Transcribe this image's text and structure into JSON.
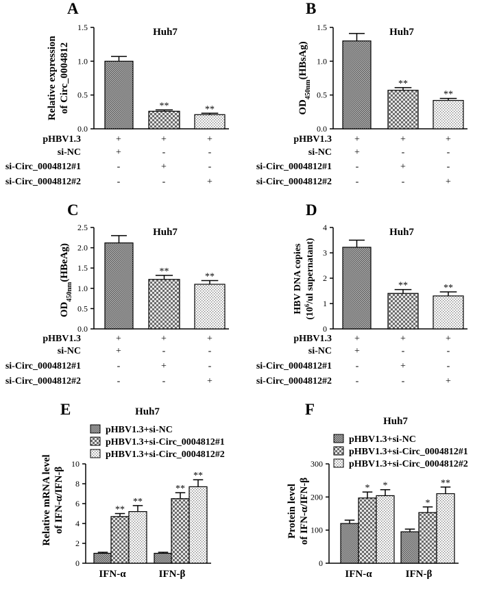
{
  "chart_data": [
    {
      "panel": "A",
      "type": "bar",
      "title": "Huh7",
      "ylabel": [
        "Relative expression",
        "of Circ_0004812"
      ],
      "ylim": [
        0,
        1.5
      ],
      "yticks": [
        "0.0",
        "0.5",
        "1.0",
        "1.5"
      ],
      "tickvals": [
        0,
        0.5,
        1.0,
        1.5
      ],
      "values": [
        1.0,
        0.26,
        0.21
      ],
      "errors": [
        0.07,
        0.02,
        0.02
      ],
      "sig": [
        "",
        "**",
        "**"
      ],
      "rows": [
        {
          "label": "pHBV1.3",
          "marks": [
            "+",
            "+",
            "+"
          ]
        },
        {
          "label": "si-NC",
          "marks": [
            "+",
            "-",
            "-"
          ]
        },
        {
          "label": "si-Circ_0004812#1",
          "marks": [
            "-",
            "+",
            "-"
          ]
        },
        {
          "label": "si-Circ_0004812#2",
          "marks": [
            "-",
            "-",
            "+"
          ]
        }
      ]
    },
    {
      "panel": "B",
      "type": "bar",
      "title": "Huh7",
      "ylabel_parts": {
        "pre": "OD",
        "sub": "450nm",
        "post": "(HBsAg)"
      },
      "ylim": [
        0,
        1.5
      ],
      "yticks": [
        "0.0",
        "0.5",
        "1.0",
        "1.5"
      ],
      "tickvals": [
        0,
        0.5,
        1.0,
        1.5
      ],
      "values": [
        1.3,
        0.57,
        0.42
      ],
      "errors": [
        0.11,
        0.04,
        0.03
      ],
      "sig": [
        "",
        "**",
        "**"
      ],
      "rows": [
        {
          "label": "pHBV1.3",
          "marks": [
            "+",
            "+",
            "+"
          ]
        },
        {
          "label": "si-NC",
          "marks": [
            "+",
            "-",
            "-"
          ]
        },
        {
          "label": "si-Circ_0004812#1",
          "marks": [
            "-",
            "+",
            "-"
          ]
        },
        {
          "label": "si-Circ_0004812#2",
          "marks": [
            "-",
            "-",
            "+"
          ]
        }
      ]
    },
    {
      "panel": "C",
      "type": "bar",
      "title": "Huh7",
      "ylabel_parts": {
        "pre": "OD",
        "sub": "450nm",
        "post": "(HBeAg)"
      },
      "ylim": [
        0,
        2.5
      ],
      "yticks": [
        "0.0",
        "0.5",
        "1.0",
        "1.5",
        "2.0",
        "2.5"
      ],
      "tickvals": [
        0,
        0.5,
        1.0,
        1.5,
        2.0,
        2.5
      ],
      "values": [
        2.12,
        1.22,
        1.1
      ],
      "errors": [
        0.18,
        0.1,
        0.09
      ],
      "sig": [
        "",
        "**",
        "**"
      ],
      "rows": [
        {
          "label": "pHBV1.3",
          "marks": [
            "+",
            "+",
            "+"
          ]
        },
        {
          "label": "si-NC",
          "marks": [
            "+",
            "-",
            "-"
          ]
        },
        {
          "label": "si-Circ_0004812#1",
          "marks": [
            "-",
            "+",
            "-"
          ]
        },
        {
          "label": "si-Circ_0004812#2",
          "marks": [
            "-",
            "-",
            "+"
          ]
        }
      ]
    },
    {
      "panel": "D",
      "type": "bar",
      "title": "Huh7",
      "ylabel_parts": {
        "line1": "HBV DNA copies",
        "pre": "(10",
        "sup": "6",
        "post": "/ul supernatant)"
      },
      "ylim": [
        0,
        4
      ],
      "yticks": [
        "0",
        "1",
        "2",
        "3",
        "4"
      ],
      "tickvals": [
        0,
        1,
        2,
        3,
        4
      ],
      "values": [
        3.22,
        1.4,
        1.3
      ],
      "errors": [
        0.28,
        0.15,
        0.16
      ],
      "sig": [
        "",
        "**",
        "**"
      ],
      "rows": [
        {
          "label": "pHBV1.3",
          "marks": [
            "+",
            "+",
            "+"
          ]
        },
        {
          "label": "si-NC",
          "marks": [
            "+",
            "-",
            "-"
          ]
        },
        {
          "label": "si-Circ_0004812#1",
          "marks": [
            "-",
            "+",
            "-"
          ]
        },
        {
          "label": "si-Circ_0004812#2",
          "marks": [
            "-",
            "-",
            "+"
          ]
        }
      ]
    },
    {
      "panel": "E",
      "type": "bar",
      "title": "Huh7",
      "ylabel": [
        "Relative mRNA level",
        "of IFN-α/IFN-β"
      ],
      "ylim": [
        0,
        10
      ],
      "yticks": [
        "0",
        "2",
        "4",
        "6",
        "8",
        "10"
      ],
      "tickvals": [
        0,
        2,
        4,
        6,
        8,
        10
      ],
      "categories": [
        "IFN-α",
        "IFN-β"
      ],
      "series": [
        {
          "name": "pHBV1.3+si-NC",
          "values": [
            1.0,
            1.0
          ],
          "errors": [
            0.1,
            0.1
          ],
          "sig": [
            "",
            ""
          ]
        },
        {
          "name": "pHBV1.3+si-Circ_0004812#1",
          "values": [
            4.7,
            6.5
          ],
          "errors": [
            0.3,
            0.6
          ],
          "sig": [
            "**",
            "**"
          ]
        },
        {
          "name": "pHBV1.3+si-Circ_0004812#2",
          "values": [
            5.2,
            7.7
          ],
          "errors": [
            0.6,
            0.7
          ],
          "sig": [
            "**",
            "**"
          ]
        }
      ]
    },
    {
      "panel": "F",
      "type": "bar",
      "title": "Huh7",
      "ylabel": [
        "Protein level",
        "of IFN-α/IFN-β"
      ],
      "ylim": [
        0,
        300
      ],
      "yticks": [
        "0",
        "100",
        "200",
        "300"
      ],
      "tickvals": [
        0,
        100,
        200,
        300
      ],
      "categories": [
        "IFN-α",
        "IFN-β"
      ],
      "series": [
        {
          "name": "pHBV1.3+si-NC",
          "values": [
            120,
            95
          ],
          "errors": [
            10,
            8
          ],
          "sig": [
            "",
            ""
          ]
        },
        {
          "name": "pHBV1.3+si-Circ_0004812#1",
          "values": [
            197,
            153
          ],
          "errors": [
            18,
            17
          ],
          "sig": [
            "*",
            "*"
          ]
        },
        {
          "name": "pHBV1.3+si-Circ_0004812#2",
          "values": [
            204,
            210
          ],
          "errors": [
            18,
            20
          ],
          "sig": [
            "*",
            "**"
          ]
        }
      ]
    }
  ]
}
